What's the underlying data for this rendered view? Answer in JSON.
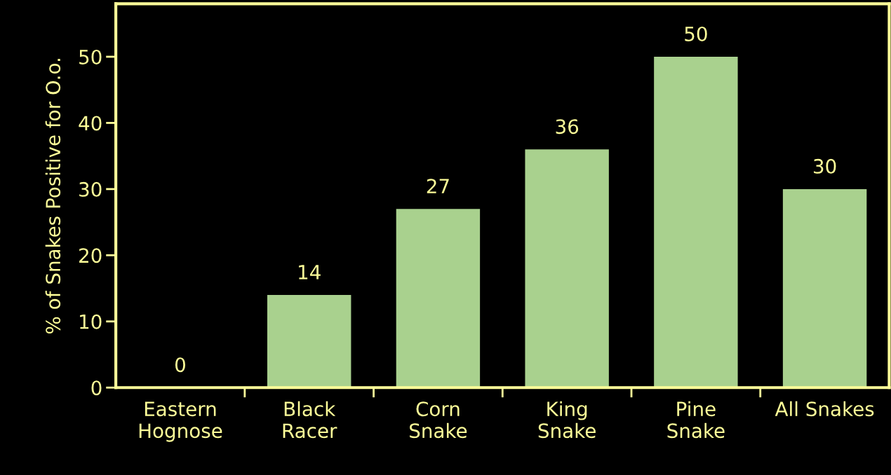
{
  "chart_data": {
    "type": "bar",
    "ylabel": "% of Snakes Positive for O.o.",
    "categories": [
      "Eastern\nHognose",
      "Black\nRacer",
      "Corn\nSnake",
      "King\nSnake",
      "Pine\nSnake",
      "All Snakes"
    ],
    "values": [
      0,
      14,
      27,
      36,
      50,
      30
    ],
    "color": "#a9d18e",
    "ylim": [
      0,
      58
    ],
    "yticks": [
      0,
      10,
      20,
      30,
      40,
      50
    ],
    "grid": false,
    "data_labels": true
  }
}
